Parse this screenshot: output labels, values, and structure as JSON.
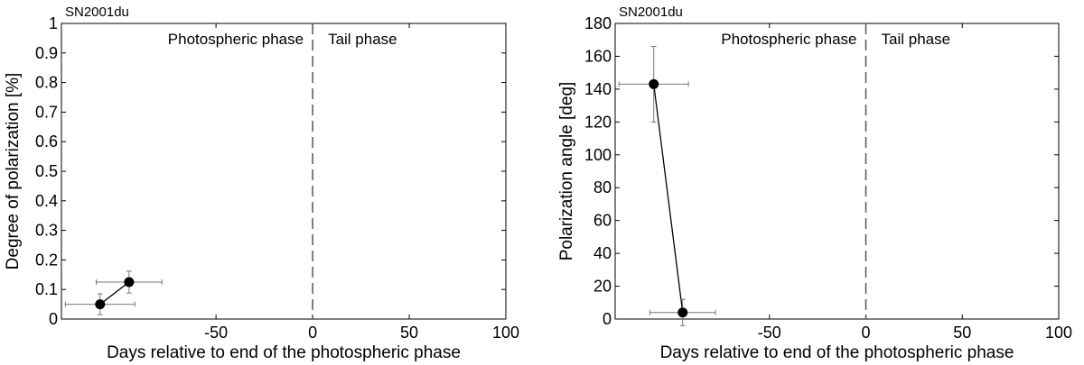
{
  "chart_data": [
    {
      "type": "scatter",
      "title": "SN2001du",
      "xlabel": "Days relative to end of the photospheric phase",
      "ylabel": "Degree of polarization [%]",
      "xlim": [
        -130,
        100
      ],
      "ylim": [
        0,
        1
      ],
      "xticks": [
        -50,
        0,
        50,
        100
      ],
      "yticks": [
        0,
        0.1,
        0.2,
        0.3,
        0.4,
        0.5,
        0.6,
        0.7,
        0.8,
        0.9,
        1
      ],
      "xtick_labels": [
        "-50",
        "0",
        "50",
        "100"
      ],
      "ytick_labels": [
        "0",
        "0.1",
        "0.2",
        "0.3",
        "0.4",
        "0.5",
        "0.6",
        "0.7",
        "0.8",
        "0.9",
        "1"
      ],
      "grid": false,
      "connected": true,
      "divider_x": 0,
      "annotations": [
        "Photospheric phase",
        "Tail phase"
      ],
      "points": [
        {
          "x": -110,
          "y": 0.05,
          "xerr": 18,
          "yerr": 0.035
        },
        {
          "x": -95,
          "y": 0.125,
          "xerr": 17,
          "yerr": 0.037
        }
      ]
    },
    {
      "type": "scatter",
      "title": "SN2001du",
      "xlabel": "Days relative to end of the photospheric phase",
      "ylabel": "Polarization angle [deg]",
      "xlim": [
        -130,
        100
      ],
      "ylim": [
        0,
        180
      ],
      "xticks": [
        -50,
        0,
        50,
        100
      ],
      "yticks": [
        0,
        20,
        40,
        60,
        80,
        100,
        120,
        140,
        160,
        180
      ],
      "xtick_labels": [
        "-50",
        "0",
        "50",
        "100"
      ],
      "ytick_labels": [
        "0",
        "20",
        "40",
        "60",
        "80",
        "100",
        "120",
        "140",
        "160",
        "180"
      ],
      "grid": false,
      "connected": true,
      "divider_x": 0,
      "annotations": [
        "Photospheric phase",
        "Tail phase"
      ],
      "points": [
        {
          "x": -110,
          "y": 143,
          "xerr": 18,
          "yerr": 23
        },
        {
          "x": -95,
          "y": 4,
          "xerr": 17,
          "yerr": 8
        }
      ]
    }
  ]
}
